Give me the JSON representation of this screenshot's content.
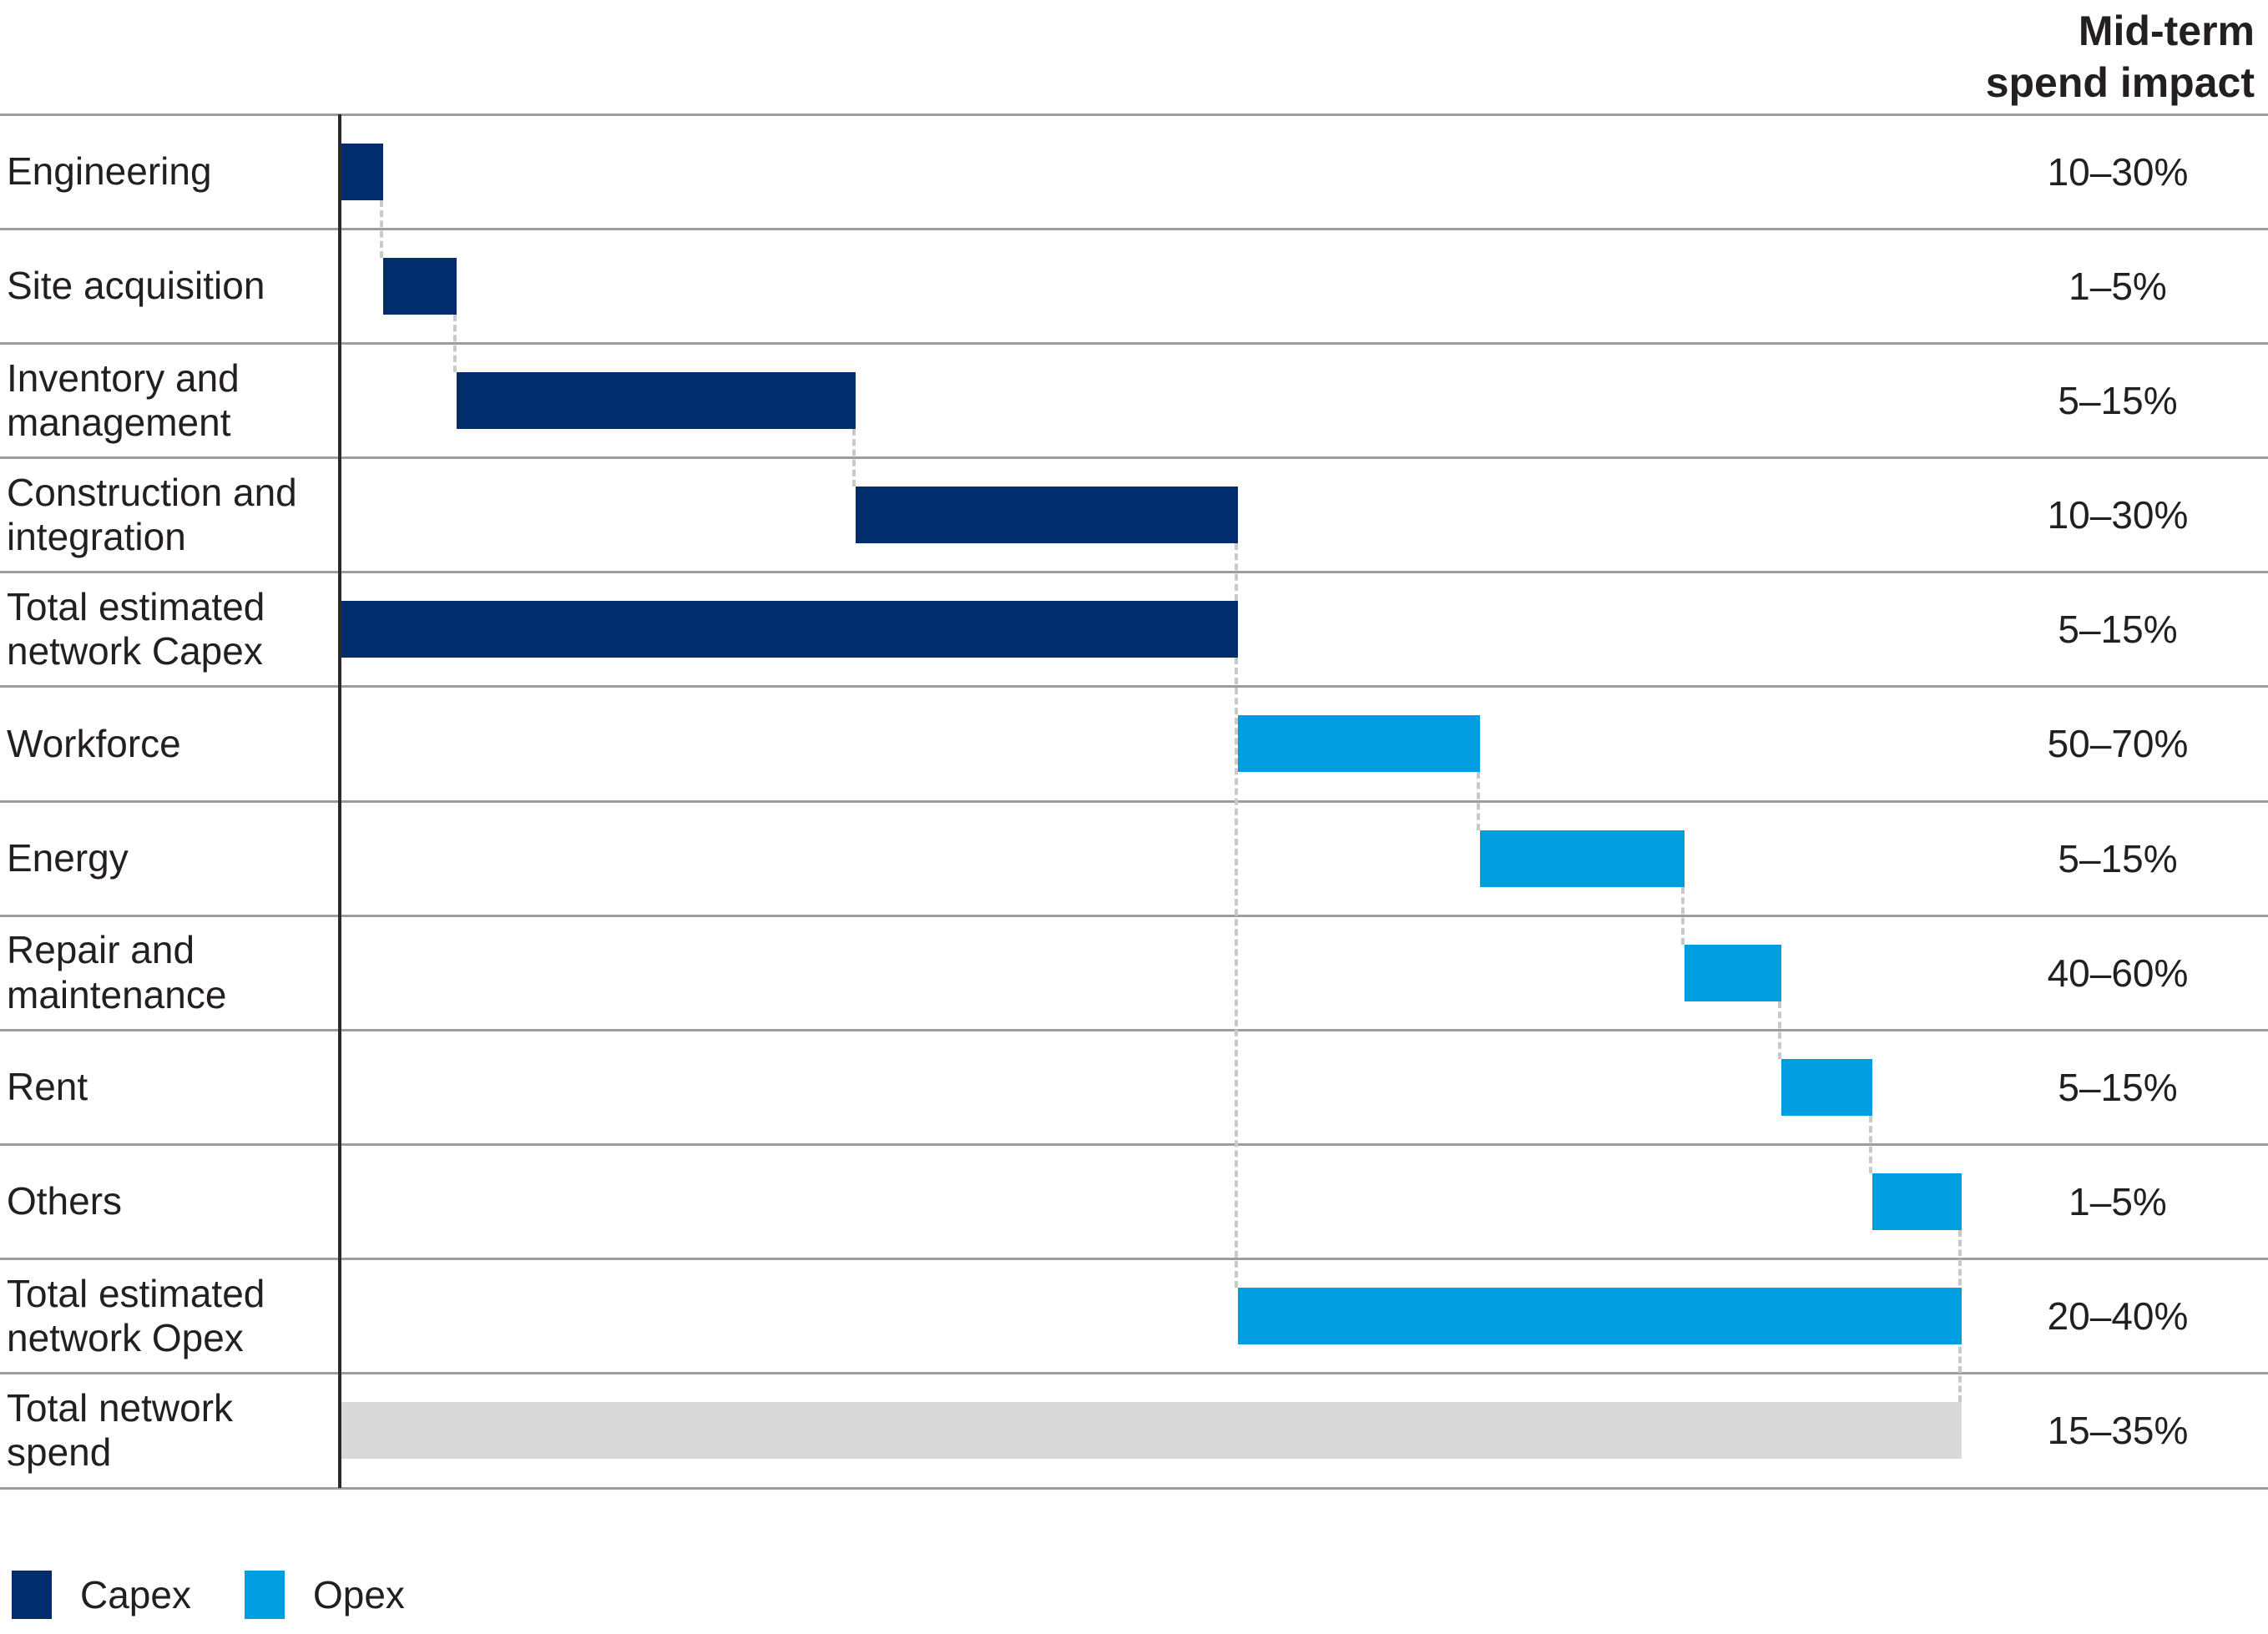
{
  "header": {
    "impact_column_title": "Mid-term spend impact",
    "lines": [
      "Mid-term",
      "spend impact"
    ]
  },
  "legend": {
    "items": [
      {
        "label": "Capex",
        "series": "Capex"
      },
      {
        "label": "Opex",
        "series": "Opex"
      }
    ]
  },
  "chart_data": {
    "type": "bar",
    "subtype": "waterfall",
    "orientation": "horizontal",
    "title": "",
    "value_axis": {
      "min": 0,
      "max": 100,
      "ticks_visible": false,
      "unit": "% of total network spend"
    },
    "impact_column_header": "Mid-term spend impact",
    "colors": {
      "Capex": "#012d6d",
      "Opex": "#009de0",
      "Total": "#d9d9d9"
    },
    "grid": {
      "row_lines": true,
      "row_line_color": "#9d9d9d"
    },
    "legend_position": "bottom-left",
    "rows": [
      {
        "label": "Engineering",
        "impact": "10–30%",
        "start": 0,
        "end": 2.7,
        "series": "Capex",
        "total": false
      },
      {
        "label": "Site acquisition",
        "impact": "1–5%",
        "start": 2.7,
        "end": 7.2,
        "series": "Capex",
        "total": false
      },
      {
        "label": "Inventory and management",
        "impact": "5–15%",
        "start": 7.2,
        "end": 31.8,
        "series": "Capex",
        "total": false
      },
      {
        "label": "Construction and integration",
        "impact": "10–30%",
        "start": 31.8,
        "end": 55.4,
        "series": "Capex",
        "total": false
      },
      {
        "label": "Total estimated network Capex",
        "impact": "5–15%",
        "start": 0,
        "end": 55.4,
        "series": "Capex",
        "total": true
      },
      {
        "label": "Workforce",
        "impact": "50–70%",
        "start": 55.4,
        "end": 70.3,
        "series": "Opex",
        "total": false
      },
      {
        "label": "Energy",
        "impact": "5–15%",
        "start": 70.3,
        "end": 82.9,
        "series": "Opex",
        "total": false
      },
      {
        "label": "Repair and maintenance",
        "impact": "40–60%",
        "start": 82.9,
        "end": 88.9,
        "series": "Opex",
        "total": false
      },
      {
        "label": "Rent",
        "impact": "5–15%",
        "start": 88.9,
        "end": 94.5,
        "series": "Opex",
        "total": false
      },
      {
        "label": "Others",
        "impact": "1–5%",
        "start": 94.5,
        "end": 100,
        "series": "Opex",
        "total": false
      },
      {
        "label": "Total estimated network Opex",
        "impact": "20–40%",
        "start": 55.4,
        "end": 100,
        "series": "Opex",
        "total": true
      },
      {
        "label": "Total network spend",
        "impact": "15–35%",
        "start": 0,
        "end": 100,
        "series": "Total",
        "total": true
      }
    ],
    "connectors": [
      {
        "x": 2.7,
        "from": 0,
        "to": 1
      },
      {
        "x": 7.2,
        "from": 1,
        "to": 2
      },
      {
        "x": 31.8,
        "from": 2,
        "to": 3
      },
      {
        "x": 55.4,
        "from": 3,
        "to": 4
      },
      {
        "x": 55.4,
        "from": 4,
        "to": 10
      },
      {
        "x": 70.3,
        "from": 5,
        "to": 6
      },
      {
        "x": 82.9,
        "from": 6,
        "to": 7
      },
      {
        "x": 88.9,
        "from": 7,
        "to": 8
      },
      {
        "x": 94.5,
        "from": 8,
        "to": 9
      },
      {
        "x": 100,
        "from": 9,
        "to": 11
      }
    ]
  }
}
